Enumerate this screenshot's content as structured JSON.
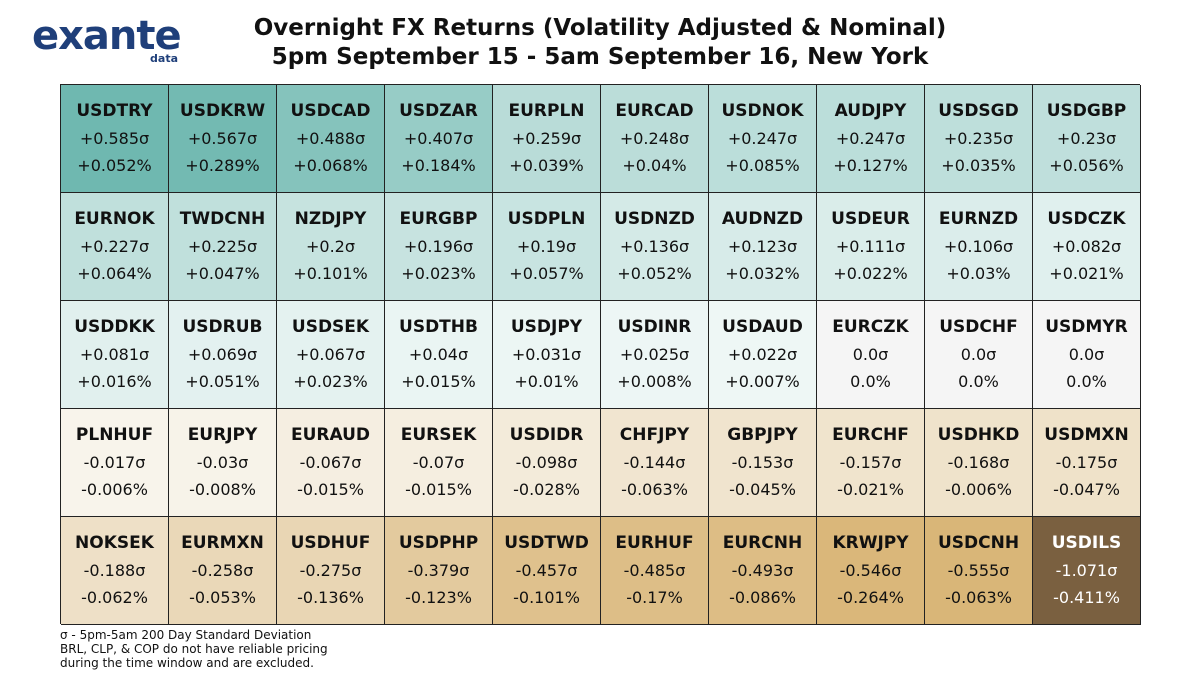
{
  "logo": {
    "word_blue": "exante",
    "sub": "data"
  },
  "title": {
    "line1": "Overnight FX Returns (Volatility Adjusted & Nominal)",
    "line2": "5pm September 15 - 5am September 16, New York"
  },
  "footnote": {
    "line1": "σ - 5pm-5am 200 Day Standard Deviation",
    "line2": "BRL, CLP, & COP do not have reliable pricing",
    "line3": "during the time window and are excluded."
  },
  "chart_data": {
    "type": "heatmap",
    "rows": 5,
    "cols": 10,
    "cells": [
      {
        "pair": "USDTRY",
        "sigma": "+0.585σ",
        "pct": "+0.052%",
        "z": 0.585
      },
      {
        "pair": "USDKRW",
        "sigma": "+0.567σ",
        "pct": "+0.289%",
        "z": 0.567
      },
      {
        "pair": "USDCAD",
        "sigma": "+0.488σ",
        "pct": "+0.068%",
        "z": 0.488
      },
      {
        "pair": "USDZAR",
        "sigma": "+0.407σ",
        "pct": "+0.184%",
        "z": 0.407
      },
      {
        "pair": "EURPLN",
        "sigma": "+0.259σ",
        "pct": "+0.039%",
        "z": 0.259
      },
      {
        "pair": "EURCAD",
        "sigma": "+0.248σ",
        "pct": "+0.04%",
        "z": 0.248
      },
      {
        "pair": "USDNOK",
        "sigma": "+0.247σ",
        "pct": "+0.085%",
        "z": 0.247
      },
      {
        "pair": "AUDJPY",
        "sigma": "+0.247σ",
        "pct": "+0.127%",
        "z": 0.247
      },
      {
        "pair": "USDSGD",
        "sigma": "+0.235σ",
        "pct": "+0.035%",
        "z": 0.235
      },
      {
        "pair": "USDGBP",
        "sigma": "+0.23σ",
        "pct": "+0.056%",
        "z": 0.23
      },
      {
        "pair": "EURNOK",
        "sigma": "+0.227σ",
        "pct": "+0.064%",
        "z": 0.227
      },
      {
        "pair": "TWDCNH",
        "sigma": "+0.225σ",
        "pct": "+0.047%",
        "z": 0.225
      },
      {
        "pair": "NZDJPY",
        "sigma": "+0.2σ",
        "pct": "+0.101%",
        "z": 0.2
      },
      {
        "pair": "EURGBP",
        "sigma": "+0.196σ",
        "pct": "+0.023%",
        "z": 0.196
      },
      {
        "pair": "USDPLN",
        "sigma": "+0.19σ",
        "pct": "+0.057%",
        "z": 0.19
      },
      {
        "pair": "USDNZD",
        "sigma": "+0.136σ",
        "pct": "+0.052%",
        "z": 0.136
      },
      {
        "pair": "AUDNZD",
        "sigma": "+0.123σ",
        "pct": "+0.032%",
        "z": 0.123
      },
      {
        "pair": "USDEUR",
        "sigma": "+0.111σ",
        "pct": "+0.022%",
        "z": 0.111
      },
      {
        "pair": "EURNZD",
        "sigma": "+0.106σ",
        "pct": "+0.03%",
        "z": 0.106
      },
      {
        "pair": "USDCZK",
        "sigma": "+0.082σ",
        "pct": "+0.021%",
        "z": 0.082
      },
      {
        "pair": "USDDKK",
        "sigma": "+0.081σ",
        "pct": "+0.016%",
        "z": 0.081
      },
      {
        "pair": "USDRUB",
        "sigma": "+0.069σ",
        "pct": "+0.051%",
        "z": 0.069
      },
      {
        "pair": "USDSEK",
        "sigma": "+0.067σ",
        "pct": "+0.023%",
        "z": 0.067
      },
      {
        "pair": "USDTHB",
        "sigma": "+0.04σ",
        "pct": "+0.015%",
        "z": 0.04
      },
      {
        "pair": "USDJPY",
        "sigma": "+0.031σ",
        "pct": "+0.01%",
        "z": 0.031
      },
      {
        "pair": "USDINR",
        "sigma": "+0.025σ",
        "pct": "+0.008%",
        "z": 0.025
      },
      {
        "pair": "USDAUD",
        "sigma": "+0.022σ",
        "pct": "+0.007%",
        "z": 0.022
      },
      {
        "pair": "EURCZK",
        "sigma": "0.0σ",
        "pct": "0.0%",
        "z": 0.0
      },
      {
        "pair": "USDCHF",
        "sigma": "0.0σ",
        "pct": "0.0%",
        "z": 0.0
      },
      {
        "pair": "USDMYR",
        "sigma": "0.0σ",
        "pct": "0.0%",
        "z": 0.0
      },
      {
        "pair": "PLNHUF",
        "sigma": "-0.017σ",
        "pct": "-0.006%",
        "z": -0.017
      },
      {
        "pair": "EURJPY",
        "sigma": "-0.03σ",
        "pct": "-0.008%",
        "z": -0.03
      },
      {
        "pair": "EURAUD",
        "sigma": "-0.067σ",
        "pct": "-0.015%",
        "z": -0.067
      },
      {
        "pair": "EURSEK",
        "sigma": "-0.07σ",
        "pct": "-0.015%",
        "z": -0.07
      },
      {
        "pair": "USDIDR",
        "sigma": "-0.098σ",
        "pct": "-0.028%",
        "z": -0.098
      },
      {
        "pair": "CHFJPY",
        "sigma": "-0.144σ",
        "pct": "-0.063%",
        "z": -0.144
      },
      {
        "pair": "GBPJPY",
        "sigma": "-0.153σ",
        "pct": "-0.045%",
        "z": -0.153
      },
      {
        "pair": "EURCHF",
        "sigma": "-0.157σ",
        "pct": "-0.021%",
        "z": -0.157
      },
      {
        "pair": "USDHKD",
        "sigma": "-0.168σ",
        "pct": "-0.006%",
        "z": -0.168
      },
      {
        "pair": "USDMXN",
        "sigma": "-0.175σ",
        "pct": "-0.047%",
        "z": -0.175
      },
      {
        "pair": "NOKSEK",
        "sigma": "-0.188σ",
        "pct": "-0.062%",
        "z": -0.188
      },
      {
        "pair": "EURMXN",
        "sigma": "-0.258σ",
        "pct": "-0.053%",
        "z": -0.258
      },
      {
        "pair": "USDHUF",
        "sigma": "-0.275σ",
        "pct": "-0.136%",
        "z": -0.275
      },
      {
        "pair": "USDPHP",
        "sigma": "-0.379σ",
        "pct": "-0.123%",
        "z": -0.379
      },
      {
        "pair": "USDTWD",
        "sigma": "-0.457σ",
        "pct": "-0.101%",
        "z": -0.457
      },
      {
        "pair": "EURHUF",
        "sigma": "-0.485σ",
        "pct": "-0.17%",
        "z": -0.485
      },
      {
        "pair": "EURCNH",
        "sigma": "-0.493σ",
        "pct": "-0.086%",
        "z": -0.493
      },
      {
        "pair": "KRWJPY",
        "sigma": "-0.546σ",
        "pct": "-0.264%",
        "z": -0.546
      },
      {
        "pair": "USDCNH",
        "sigma": "-0.555σ",
        "pct": "-0.063%",
        "z": -0.555
      },
      {
        "pair": "USDILS",
        "sigma": "-1.071σ",
        "pct": "-0.411%",
        "z": -1.071
      }
    ]
  },
  "colors": {
    "pos_max": "#6fb8b0",
    "pos_min": "#f3f9f8",
    "neutral": "#f5f5f5",
    "neg_min": "#f9f6ef",
    "neg_mid": "#d9b678",
    "neg_max": "#7a6040",
    "text_dark": "#111111",
    "text_light": "#ffffff"
  }
}
